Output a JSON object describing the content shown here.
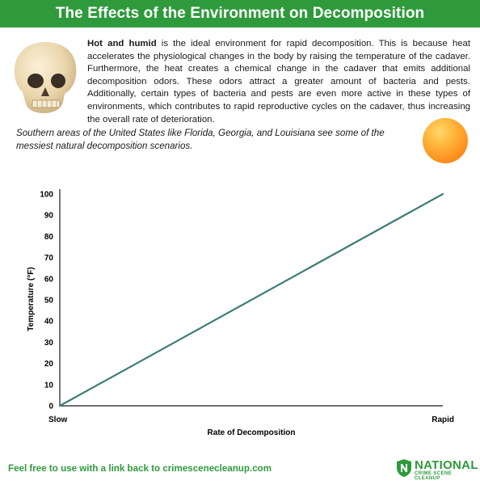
{
  "header": {
    "title": "The Effects of the Environment on Decomposition"
  },
  "intro": {
    "lead": "Hot and humid",
    "text": " is the ideal environment for rapid decomposition. This is because heat accelerates the physiological changes in the body by raising the temperature of the cadaver. Furthermore, the heat creates a chemical change in the cadaver that emits additional decomposition odors. These odors attract a greater amount of bacteria and pests. Additionally, certain types of bacteria and pests are even more active in these types of environments, which contributes to rapid reproductive cycles on the cadaver, thus increasing the overall rate of deterioration."
  },
  "south_note": "Southern areas of the United States like Florida, Georgia, and Louisiana see some of the messiest natural decomposition scenarios.",
  "icons": {
    "skull": "skull-icon",
    "sun": "sun-icon",
    "badge": "shield-n-icon"
  },
  "colors": {
    "banner": "#2f9a3c",
    "line": "#3f7c78",
    "sun": "#ff9a22",
    "footer": "#2f9a3c"
  },
  "chart_data": {
    "type": "line",
    "xlabel": "Rate of Decomposition",
    "ylabel": "Temperature (°F)",
    "x_tick_labels": [
      "Slow",
      "Rapid"
    ],
    "y_ticks": [
      0,
      10,
      20,
      30,
      40,
      50,
      60,
      70,
      80,
      90,
      100
    ],
    "ylim": [
      0,
      100
    ],
    "grid": false,
    "series": [
      {
        "x": [
          "Slow",
          "Rapid"
        ],
        "y": [
          0,
          100
        ]
      }
    ]
  },
  "footer": {
    "link_text": "Feel free to use with a link back to crimescenecleanup.com",
    "brand_name": "NATIONAL",
    "brand_sub": "CRIME SCENE CLEANUP"
  }
}
